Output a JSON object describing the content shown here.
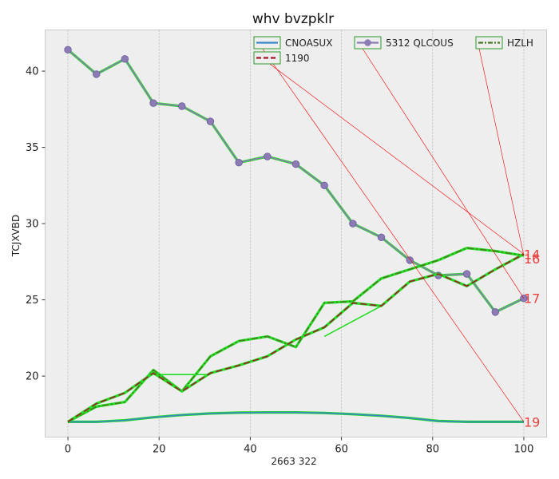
{
  "chart_data": {
    "type": "line",
    "title": "whv bvzpklr",
    "xlabel": "2663 322",
    "ylabel": "TCJXVBD",
    "xlim": [
      -5,
      105
    ],
    "ylim": [
      16,
      42.7
    ],
    "x_ticks": [
      0,
      20,
      40,
      60,
      80,
      100
    ],
    "y_ticks": [
      20,
      25,
      30,
      35,
      40
    ],
    "grid": "vertical dotted",
    "legend_position": "top",
    "colors": {
      "plot_bg": "#eeeeee",
      "highlight": "#22dd22",
      "legend_border": "#2a9a2a",
      "annotation": "#e8413f",
      "arrow": "#ee0000"
    },
    "series": [
      {
        "name": "CNOASUX",
        "color": "#3a86c8",
        "style": "solid",
        "marker": "none",
        "x": [
          0,
          6.25,
          12.5,
          18.75,
          25,
          31.25,
          37.5,
          43.75,
          50,
          56.25,
          62.5,
          68.75,
          75,
          81.25,
          87.5,
          93.75,
          100
        ],
        "y": [
          17.0,
          17.0,
          17.1,
          17.3,
          17.45,
          17.55,
          17.6,
          17.62,
          17.62,
          17.58,
          17.5,
          17.4,
          17.25,
          17.05,
          17.0,
          17.0,
          17.0
        ]
      },
      {
        "name": "5312 QLCOUS",
        "color": "#8c7bb5",
        "style": "solid",
        "marker": "circle",
        "x": [
          0,
          6.25,
          12.5,
          18.75,
          25,
          31.25,
          37.5,
          43.75,
          50,
          56.25,
          62.5,
          68.75,
          75,
          81.25,
          87.5,
          93.75,
          100
        ],
        "y": [
          41.4,
          39.8,
          40.8,
          37.9,
          37.7,
          36.7,
          34.0,
          34.4,
          33.9,
          32.5,
          30.0,
          29.1,
          27.6,
          26.6,
          26.7,
          24.2,
          25.1
        ]
      },
      {
        "name": "HZLH",
        "color": "#4a7a1f",
        "style": "dashdot",
        "marker": "none",
        "x": [
          0,
          6.25,
          12.5,
          18.75,
          25,
          31.25,
          37.5,
          43.75,
          50,
          56.25,
          62.5,
          68.75,
          75,
          81.25,
          87.5,
          93.75,
          100
        ],
        "y": [
          17.0,
          18.0,
          18.3,
          20.4,
          19.0,
          21.3,
          22.3,
          22.6,
          21.9,
          24.8,
          24.9,
          26.4,
          27.0,
          27.6,
          28.4,
          28.2,
          27.9
        ]
      },
      {
        "name": "1190",
        "color": "#a3162a",
        "style": "dashed",
        "marker": "none",
        "x": [
          0,
          6.25,
          12.5,
          18.75,
          25,
          31.25,
          37.5,
          43.75,
          50,
          56.25,
          62.5,
          68.75,
          75,
          81.25,
          87.5,
          93.75,
          100
        ],
        "y": [
          17.0,
          18.2,
          18.9,
          20.2,
          19.0,
          20.2,
          20.7,
          21.3,
          22.4,
          23.2,
          24.8,
          24.6,
          26.2,
          26.7,
          25.9,
          27.0,
          28.0
        ]
      }
    ],
    "highlight_segments": [
      [
        [
          18.75,
          20.1
        ],
        [
          31.25,
          20.1
        ]
      ],
      [
        [
          56.25,
          22.6
        ],
        [
          68.75,
          24.6
        ]
      ]
    ],
    "annotations": [
      {
        "text": "14",
        "x": 100,
        "y": 28.0
      },
      {
        "text": "16",
        "x": 100,
        "y": 27.7
      },
      {
        "text": "17",
        "x": 100,
        "y": 25.1
      },
      {
        "text": "19",
        "x": 100,
        "y": 17.0
      }
    ],
    "arrows": [
      {
        "from_legend": "CNOASUX",
        "to": [
          100,
          17.0
        ]
      },
      {
        "from_legend": "5312 QLCOUS",
        "to": [
          100,
          25.1
        ]
      },
      {
        "from_legend": "HZLH",
        "to": [
          100,
          27.9
        ]
      },
      {
        "from_legend": "1190",
        "to": [
          100,
          28.0
        ]
      }
    ]
  }
}
